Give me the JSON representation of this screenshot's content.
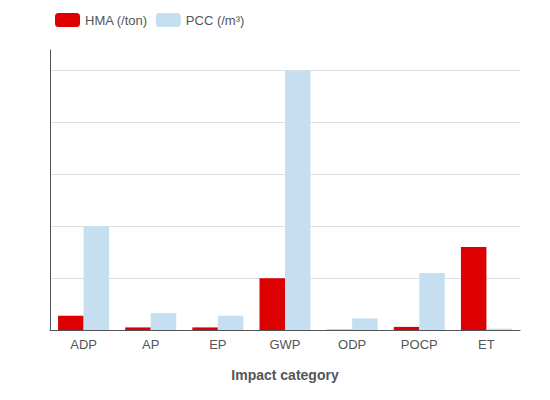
{
  "chart_data": {
    "type": "bar",
    "xlabel": "Impact category",
    "categories": [
      "ADP",
      "AP",
      "EP",
      "GWP",
      "ODP",
      "POCP",
      "ET"
    ],
    "series": [
      {
        "name": "HMA (/ton)",
        "color": "#dd0000",
        "values": [
          0.055,
          0.01,
          0.01,
          0.2,
          0.001,
          0.012,
          0.32
        ]
      },
      {
        "name": "PCC (/m³)",
        "color": "#c6dff0",
        "values": [
          0.4,
          0.065,
          0.055,
          1.0,
          0.045,
          0.22,
          0.005
        ]
      }
    ],
    "ylim": [
      0,
      1.08
    ],
    "yticks": [
      0,
      0.2,
      0.4,
      0.6,
      0.8,
      1.0
    ],
    "grid": true,
    "legend": "upper left",
    "tick_labels": "x"
  }
}
